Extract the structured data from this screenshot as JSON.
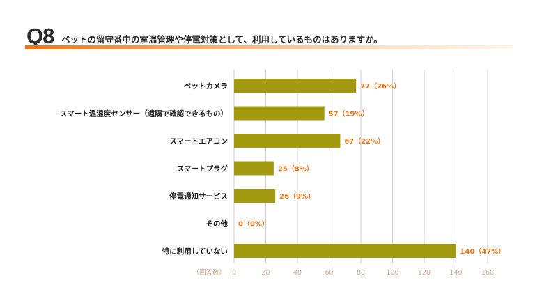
{
  "question": {
    "number": "Q8",
    "text": "ペットの留守番中の室温管理や停電対策として、利用しているものはありますか。"
  },
  "colors": {
    "bar": "#a39a10",
    "value_label": "#e8751a",
    "title_accent": "#e8751a",
    "grid": "#cfcfcf",
    "tick": "#c9a78f"
  },
  "chart_data": {
    "type": "bar",
    "orientation": "horizontal",
    "categories": [
      "ペットカメラ",
      "スマート温湿度センサー（遠隔で確認できるもの）",
      "スマートエアコン",
      "スマートプラグ",
      "停電通知サービス",
      "その他",
      "特に利用していない"
    ],
    "values": [
      77,
      57,
      67,
      25,
      26,
      0,
      140
    ],
    "value_labels": [
      "77（26%）",
      "57（19%）",
      "67（22%）",
      "25（8%）",
      "26（9%）",
      "0（0%）",
      "140（47%）"
    ],
    "xlim": [
      0,
      160
    ],
    "xticks": [
      "0",
      "20",
      "40",
      "60",
      "80",
      "100",
      "120",
      "140",
      "160"
    ],
    "xlabel": "（回答数）",
    "grid": true
  }
}
